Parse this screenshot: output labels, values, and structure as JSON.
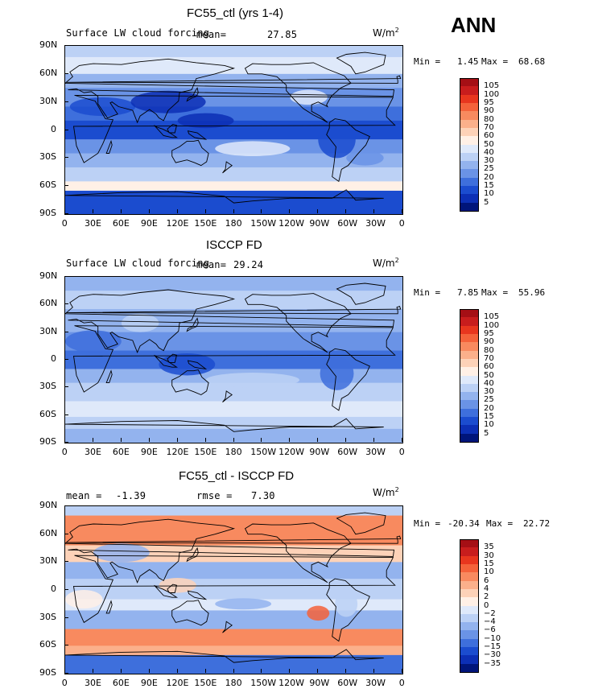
{
  "header": {
    "season": "ANN"
  },
  "panels": [
    {
      "title": "FC55_ctl (yrs 1-4)",
      "variable": "Surface LW cloud forcing",
      "mean_label": "mean=",
      "mean_value": "27.85",
      "units": "W/m",
      "units_exp": "2",
      "min_label": "Min =",
      "min_value": "1.45",
      "max_label": "Max =",
      "max_value": "68.68",
      "colorbar": {
        "labels": [
          "105",
          "100",
          "95",
          "90",
          "80",
          "70",
          "60",
          "50",
          "40",
          "30",
          "25",
          "20",
          "15",
          "10",
          "5"
        ],
        "colors": [
          "#a50f15",
          "#c81d1d",
          "#e8361e",
          "#f4623a",
          "#f88a5f",
          "#fbb08b",
          "#fdd2b8",
          "#fff0e6",
          "#dfe9fa",
          "#bcd1f5",
          "#93b3ee",
          "#6a93e6",
          "#3e6fdc",
          "#1b4ccf",
          "#0c2fb5",
          "#00157a"
        ]
      },
      "chart_data": {
        "type": "heatmap",
        "title": "FC55_ctl (yrs 1-4)",
        "field": "Surface LW cloud forcing",
        "units": "W/m2",
        "mean": 27.85,
        "min": 1.45,
        "max": 68.68,
        "x_ticks": [
          "0",
          "30E",
          "60E",
          "90E",
          "120E",
          "150E",
          "180",
          "150W",
          "120W",
          "90W",
          "60W",
          "30W",
          "0"
        ],
        "y_ticks": [
          "90N",
          "60N",
          "30N",
          "0",
          "30S",
          "60S",
          "90S"
        ],
        "xlim": [
          0,
          360
        ],
        "ylim": [
          -90,
          90
        ]
      }
    },
    {
      "title": "ISCCP FD",
      "variable": "Surface LW cloud forcing",
      "mean_label": "mean=",
      "mean_value": "29.24",
      "units": "W/m",
      "units_exp": "2",
      "min_label": "Min =",
      "min_value": "7.85",
      "max_label": "Max =",
      "max_value": "55.96",
      "colorbar": {
        "labels": [
          "105",
          "100",
          "95",
          "90",
          "80",
          "70",
          "60",
          "50",
          "40",
          "30",
          "25",
          "20",
          "15",
          "10",
          "5"
        ],
        "colors": [
          "#a50f15",
          "#c81d1d",
          "#e8361e",
          "#f4623a",
          "#f88a5f",
          "#fbb08b",
          "#fdd2b8",
          "#fff0e6",
          "#dfe9fa",
          "#bcd1f5",
          "#93b3ee",
          "#6a93e6",
          "#3e6fdc",
          "#1b4ccf",
          "#0c2fb5",
          "#00157a"
        ]
      },
      "chart_data": {
        "type": "heatmap",
        "title": "ISCCP FD",
        "field": "Surface LW cloud forcing",
        "units": "W/m2",
        "mean": 29.24,
        "min": 7.85,
        "max": 55.96,
        "x_ticks": [
          "0",
          "30E",
          "60E",
          "90E",
          "120E",
          "150E",
          "180",
          "150W",
          "120W",
          "90W",
          "60W",
          "30W",
          "0"
        ],
        "y_ticks": [
          "90N",
          "60N",
          "30N",
          "0",
          "30S",
          "60S",
          "90S"
        ],
        "xlim": [
          0,
          360
        ],
        "ylim": [
          -90,
          90
        ]
      }
    },
    {
      "title": "FC55_ctl - ISCCP FD",
      "mean_label": "mean =",
      "mean_value": "-1.39",
      "rmse_label": "rmse =",
      "rmse_value": "7.30",
      "units": "W/m",
      "units_exp": "2",
      "min_label": "Min =",
      "min_value": "-20.34",
      "max_label": "Max =",
      "max_value": "22.72",
      "colorbar": {
        "labels": [
          "35",
          "30",
          "15",
          "10",
          "6",
          "4",
          "2",
          "0",
          "−2",
          "−4",
          "−6",
          "−10",
          "−15",
          "−30",
          "−35"
        ],
        "colors": [
          "#a50f15",
          "#c81d1d",
          "#e8361e",
          "#f4623a",
          "#f88a5f",
          "#fbb08b",
          "#fdd2b8",
          "#fff0e6",
          "#dfe9fa",
          "#bcd1f5",
          "#93b3ee",
          "#6a93e6",
          "#3e6fdc",
          "#1b4ccf",
          "#0c2fb5",
          "#00157a"
        ]
      },
      "chart_data": {
        "type": "heatmap",
        "title": "FC55_ctl - ISCCP FD",
        "units": "W/m2",
        "mean": -1.39,
        "rmse": 7.3,
        "min": -20.34,
        "max": 22.72,
        "x_ticks": [
          "0",
          "30E",
          "60E",
          "90E",
          "120E",
          "150E",
          "180",
          "150W",
          "120W",
          "90W",
          "60W",
          "30W",
          "0"
        ],
        "y_ticks": [
          "90N",
          "60N",
          "30N",
          "0",
          "30S",
          "60S",
          "90S"
        ],
        "xlim": [
          0,
          360
        ],
        "ylim": [
          -90,
          90
        ]
      }
    }
  ]
}
